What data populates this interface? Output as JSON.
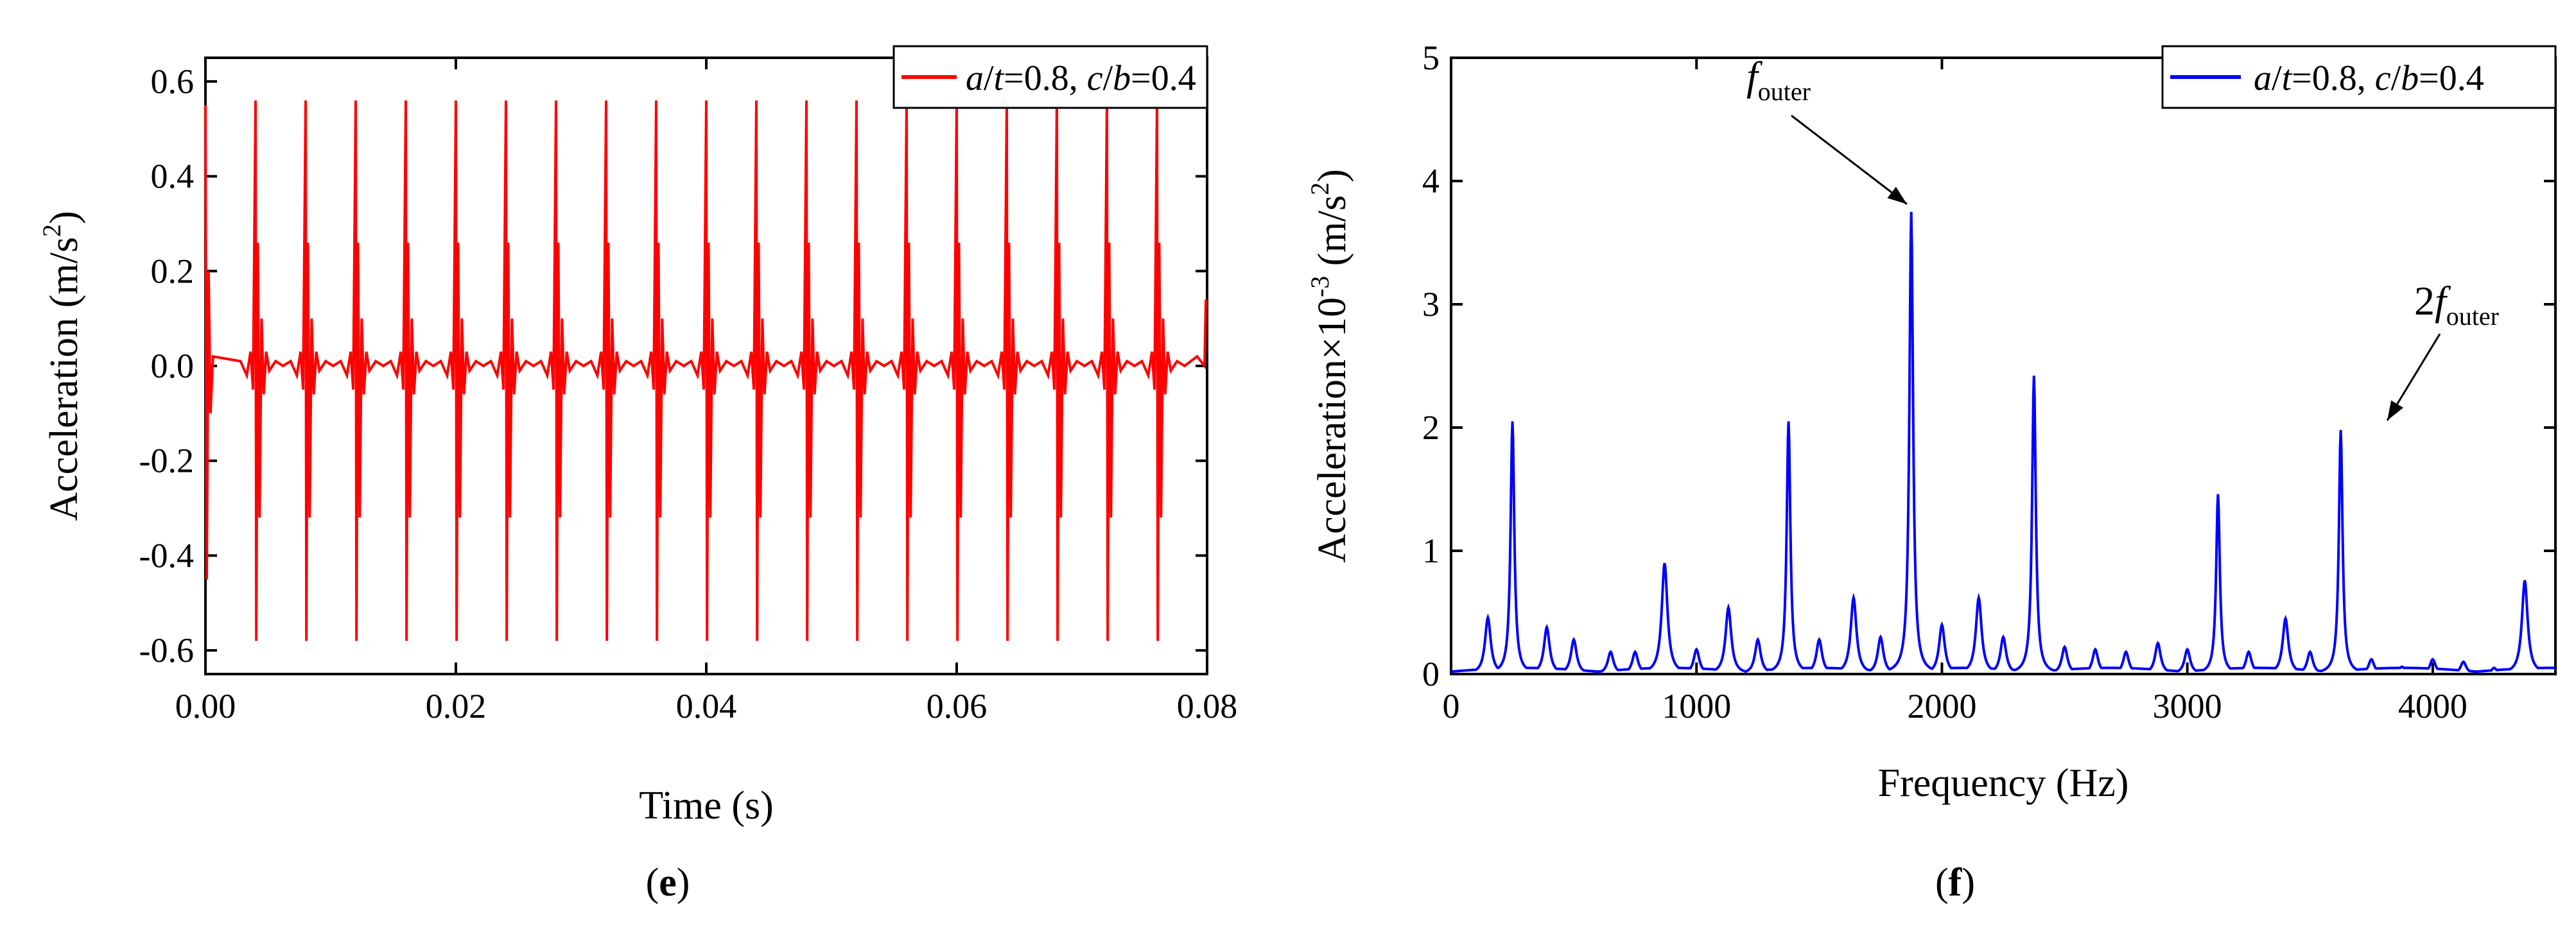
{
  "chart_data": [
    {
      "type": "line",
      "panel_label": "e",
      "xlabel": "Time (s)",
      "ylabel_text": "Acceleration (m/s",
      "ylabel_sup": "2",
      "ylabel_close": ")",
      "xlim": [
        0,
        0.08
      ],
      "ylim": [
        -0.65,
        0.65
      ],
      "xticks": [
        "0.00",
        "0.02",
        "0.04",
        "0.06",
        "0.08"
      ],
      "yticks": [
        "0.6",
        "0.4",
        "0.2",
        "0.0",
        "-0.2",
        "-0.4",
        "-0.6"
      ],
      "xtick_values": [
        0,
        0.02,
        0.04,
        0.06,
        0.08
      ],
      "ytick_values": [
        0.6,
        0.4,
        0.2,
        0.0,
        -0.2,
        -0.4,
        -0.6
      ],
      "series": [
        {
          "name": "a/t=0.8, c/b=0.4",
          "color": "#ff0000",
          "impulse_period": 0.004,
          "first_impulse": 0.0,
          "last_impulse": 0.076,
          "peak": 0.56,
          "trough": -0.58,
          "secondary": 0.26,
          "end_value": 0.14
        }
      ],
      "legend": {
        "position": "top-right",
        "label_parts": {
          "a": "a",
          "t_pre": "/",
          "t": "t",
          "val1": "=0.8, ",
          "c": "c",
          "b_pre": "/",
          "b": "b",
          "val2": "=0.4"
        }
      }
    },
    {
      "type": "line",
      "panel_label": "f",
      "xlabel": "Frequency (Hz)",
      "ylabel_text": "Acceleration×10",
      "ylabel_exp": "-3",
      "ylabel_units": " (m/s",
      "ylabel_sup": "2",
      "ylabel_close": ")",
      "xlim": [
        0,
        4500
      ],
      "ylim": [
        0,
        5
      ],
      "xticks": [
        "0",
        "1000",
        "2000",
        "3000",
        "4000"
      ],
      "yticks": [
        "0",
        "1",
        "2",
        "3",
        "4",
        "5"
      ],
      "xtick_values": [
        0,
        1000,
        2000,
        3000,
        4000
      ],
      "ytick_values": [
        0,
        1,
        2,
        3,
        4,
        5
      ],
      "series": [
        {
          "name": "a/t=0.8, c/b=0.4",
          "color": "#0000ff",
          "peaks": [
            [
              150,
              0.46
            ],
            [
              250,
              2.05
            ],
            [
              390,
              0.38
            ],
            [
              500,
              0.28
            ],
            [
              650,
              0.18
            ],
            [
              750,
              0.18
            ],
            [
              870,
              0.9
            ],
            [
              1000,
              0.2
            ],
            [
              1130,
              0.54
            ],
            [
              1250,
              0.28
            ],
            [
              1375,
              2.05
            ],
            [
              1500,
              0.28
            ],
            [
              1640,
              0.62
            ],
            [
              1750,
              0.3
            ],
            [
              1875,
              3.75
            ],
            [
              2000,
              0.4
            ],
            [
              2150,
              0.62
            ],
            [
              2250,
              0.3
            ],
            [
              2375,
              2.42
            ],
            [
              2500,
              0.22
            ],
            [
              2625,
              0.2
            ],
            [
              2750,
              0.18
            ],
            [
              2880,
              0.25
            ],
            [
              3000,
              0.2
            ],
            [
              3125,
              1.46
            ],
            [
              3250,
              0.18
            ],
            [
              3400,
              0.45
            ],
            [
              3500,
              0.18
            ],
            [
              3625,
              1.98
            ],
            [
              3750,
              0.12
            ],
            [
              3875,
              0.06
            ],
            [
              4000,
              0.12
            ],
            [
              4125,
              0.1
            ],
            [
              4250,
              0.05
            ],
            [
              4375,
              0.76
            ]
          ]
        }
      ],
      "legend": {
        "position": "top-right",
        "label_parts": {
          "a": "a",
          "t_pre": "/",
          "t": "t",
          "val1": "=0.8, ",
          "c": "c",
          "b_pre": "/",
          "b": "b",
          "val2": "=0.4"
        }
      },
      "annotations": [
        {
          "main": "f",
          "sub": "outer",
          "x": 1875,
          "y": 3.75
        },
        {
          "prefix": "2",
          "main": "f",
          "sub": "outer",
          "x": 3625,
          "y": 1.98
        }
      ]
    }
  ]
}
